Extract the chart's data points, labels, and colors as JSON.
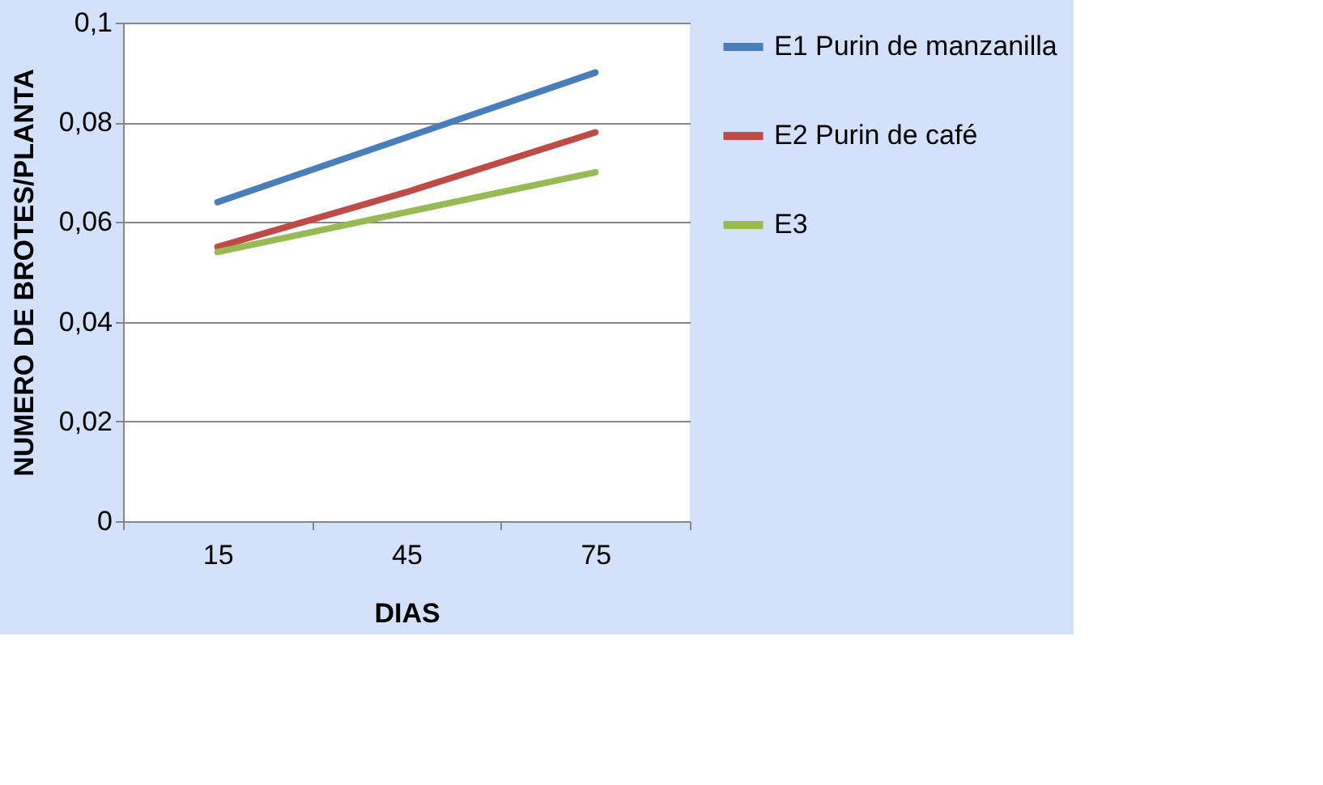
{
  "chart_data": {
    "type": "line",
    "xlabel": "DIAS",
    "ylabel": "NUMERO DE BROTES/PLANTA",
    "categories": [
      "15",
      "45",
      "75"
    ],
    "series": [
      {
        "name": "E1  Purin de manzanilla",
        "color": "#4a7ebb",
        "values": [
          0.064,
          0.077,
          0.09
        ]
      },
      {
        "name": "E2  Purin de café",
        "color": "#be4b48",
        "values": [
          0.055,
          0.066,
          0.078
        ]
      },
      {
        "name": "E3",
        "color": "#98b954",
        "values": [
          0.054,
          0.062,
          0.07
        ]
      }
    ],
    "ylim": [
      0,
      0.1
    ],
    "yticks": [
      0,
      {
        "value": 0.02,
        "label": "0,02"
      },
      {
        "value": 0.04,
        "label": "0,04"
      },
      {
        "value": 0.06,
        "label": "0,06"
      },
      {
        "value": 0.08,
        "label": "0,08"
      },
      {
        "value": 0.1,
        "label": "0,1"
      }
    ],
    "grid": "y",
    "legend": "right",
    "marker": "none",
    "line_style": "solid"
  }
}
